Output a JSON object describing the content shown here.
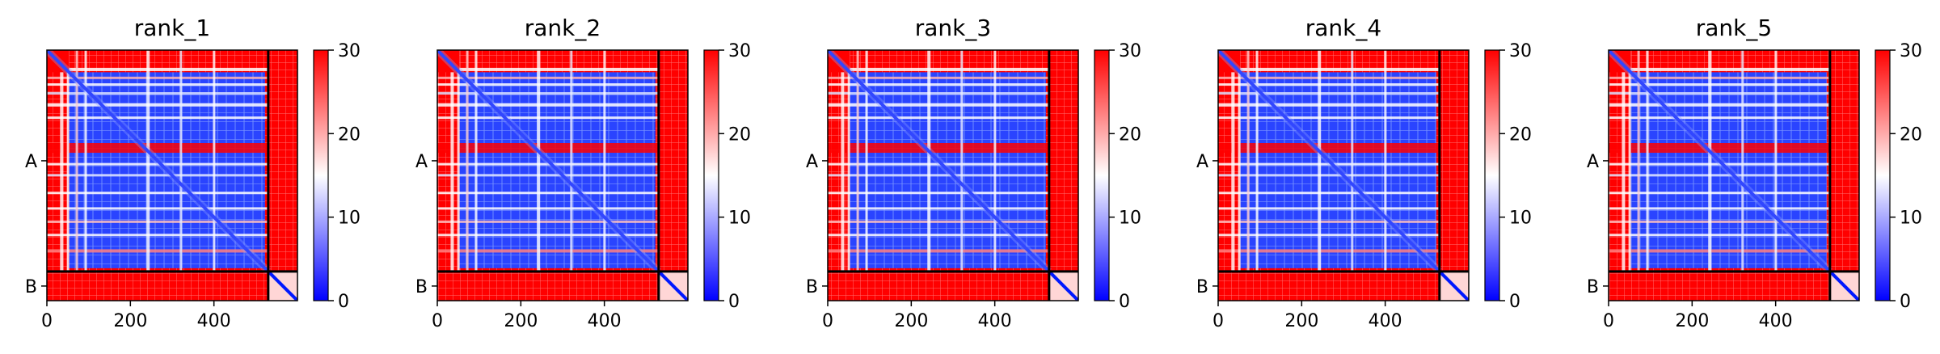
{
  "chart_data": [
    {
      "type": "heatmap",
      "title": "rank_1",
      "x_ticks": [
        0,
        200,
        400
      ],
      "y_tick_labels": [
        "A",
        "B"
      ],
      "chain_boundary": 530,
      "residue_count": 600,
      "colorbar": {
        "min": 0,
        "max": 30,
        "ticks": [
          0,
          10,
          20,
          30
        ]
      },
      "colormap": [
        "#0000ff",
        "#ffffff",
        "#ff0000"
      ]
    },
    {
      "type": "heatmap",
      "title": "rank_2",
      "x_ticks": [
        0,
        200,
        400
      ],
      "y_tick_labels": [
        "A",
        "B"
      ],
      "chain_boundary": 530,
      "residue_count": 600,
      "colorbar": {
        "min": 0,
        "max": 30,
        "ticks": [
          0,
          10,
          20,
          30
        ]
      },
      "colormap": [
        "#0000ff",
        "#ffffff",
        "#ff0000"
      ]
    },
    {
      "type": "heatmap",
      "title": "rank_3",
      "x_ticks": [
        0,
        200,
        400
      ],
      "y_tick_labels": [
        "A",
        "B"
      ],
      "chain_boundary": 530,
      "residue_count": 600,
      "colorbar": {
        "min": 0,
        "max": 30,
        "ticks": [
          0,
          10,
          20,
          30
        ]
      },
      "colormap": [
        "#0000ff",
        "#ffffff",
        "#ff0000"
      ]
    },
    {
      "type": "heatmap",
      "title": "rank_4",
      "x_ticks": [
        0,
        200,
        400
      ],
      "y_tick_labels": [
        "A",
        "B"
      ],
      "chain_boundary": 530,
      "residue_count": 600,
      "colorbar": {
        "min": 0,
        "max": 30,
        "ticks": [
          0,
          10,
          20,
          30
        ]
      },
      "colormap": [
        "#0000ff",
        "#ffffff",
        "#ff0000"
      ]
    },
    {
      "type": "heatmap",
      "title": "rank_5",
      "x_ticks": [
        0,
        200,
        400
      ],
      "y_tick_labels": [
        "A",
        "B"
      ],
      "chain_boundary": 530,
      "residue_count": 600,
      "colorbar": {
        "min": 0,
        "max": 30,
        "ticks": [
          0,
          10,
          20,
          30
        ]
      },
      "colormap": [
        "#0000ff",
        "#ffffff",
        "#ff0000"
      ]
    }
  ]
}
